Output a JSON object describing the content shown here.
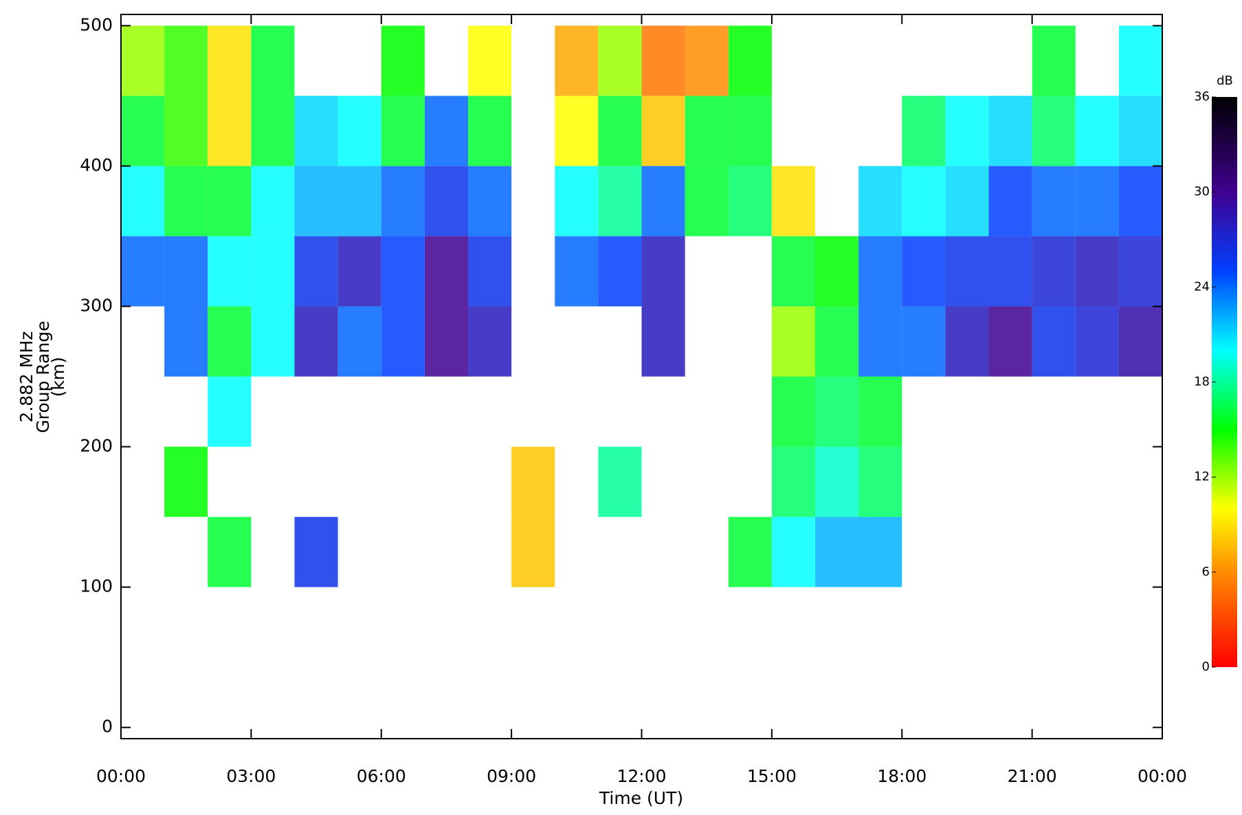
{
  "chart_data": {
    "type": "heatmap",
    "x_label": "Time (UT)",
    "y_label": [
      "2.882 MHz",
      "Group Range",
      "(km)"
    ],
    "x": [
      0,
      1,
      2,
      3,
      4,
      5,
      6,
      7,
      8,
      9,
      10,
      11,
      12,
      13,
      14,
      15,
      16,
      17,
      18,
      19,
      20,
      21,
      22,
      23,
      24
    ],
    "y": [
      100,
      150,
      200,
      250,
      300,
      350,
      400,
      450,
      500
    ],
    "z": [
      [
        null,
        null,
        16,
        null,
        26,
        null,
        null,
        null,
        null,
        8,
        null,
        null,
        null,
        null,
        16,
        20,
        22,
        22,
        null,
        null,
        null,
        null,
        null,
        null
      ],
      [
        null,
        15,
        null,
        null,
        null,
        null,
        null,
        null,
        null,
        8,
        null,
        18,
        null,
        null,
        null,
        17,
        19,
        17,
        null,
        null,
        null,
        null,
        null,
        null
      ],
      [
        null,
        null,
        20,
        null,
        null,
        null,
        null,
        null,
        null,
        null,
        null,
        null,
        null,
        null,
        null,
        16,
        17,
        16,
        null,
        null,
        null,
        null,
        null,
        null
      ],
      [
        null,
        24,
        16,
        20,
        28,
        24,
        25,
        30,
        28,
        null,
        null,
        null,
        28,
        null,
        null,
        12,
        16,
        24,
        24,
        28,
        30,
        26,
        27,
        29
      ],
      [
        24,
        24,
        20,
        20,
        26,
        28,
        25,
        30,
        26,
        null,
        24,
        25,
        28,
        null,
        null,
        16,
        15,
        24,
        25,
        26,
        26,
        27,
        28,
        27
      ],
      [
        20,
        16,
        16,
        20,
        22,
        22,
        24,
        26,
        24,
        null,
        20,
        18,
        24,
        16,
        17,
        9,
        null,
        21,
        20,
        21,
        25,
        24,
        24,
        25
      ],
      [
        16,
        14,
        9,
        16,
        21,
        20,
        16,
        24,
        16,
        null,
        10,
        16,
        8,
        16,
        16,
        null,
        null,
        null,
        17,
        20,
        21,
        17,
        20,
        21
      ],
      [
        12,
        14,
        9,
        16,
        null,
        null,
        15,
        null,
        10,
        null,
        7,
        12,
        5,
        6,
        15,
        null,
        null,
        null,
        null,
        null,
        null,
        16,
        null,
        20
      ]
    ],
    "xlim": [
      0,
      24
    ],
    "xticks": [
      {
        "value": 0,
        "label": "00:00"
      },
      {
        "value": 3,
        "label": "03:00"
      },
      {
        "value": 6,
        "label": "06:00"
      },
      {
        "value": 9,
        "label": "09:00"
      },
      {
        "value": 12,
        "label": "12:00"
      },
      {
        "value": 15,
        "label": "15:00"
      },
      {
        "value": 18,
        "label": "18:00"
      },
      {
        "value": 21,
        "label": "21:00"
      },
      {
        "value": 24,
        "label": "00:00"
      }
    ],
    "ylim": [
      -8,
      508
    ],
    "yticks": [
      0,
      100,
      200,
      300,
      400,
      500
    ],
    "zlabel": "dB",
    "zlim": [
      0,
      36
    ],
    "zticks": [
      0,
      6,
      12,
      18,
      24,
      30,
      36
    ],
    "colorscale": [
      [
        0,
        "#ff0000"
      ],
      [
        6,
        "#ff8c00"
      ],
      [
        10,
        "#ffff00"
      ],
      [
        15,
        "#00ff00"
      ],
      [
        20,
        "#00ffff"
      ],
      [
        25,
        "#0040ff"
      ],
      [
        30,
        "#400090"
      ],
      [
        36,
        "#000000"
      ]
    ]
  }
}
